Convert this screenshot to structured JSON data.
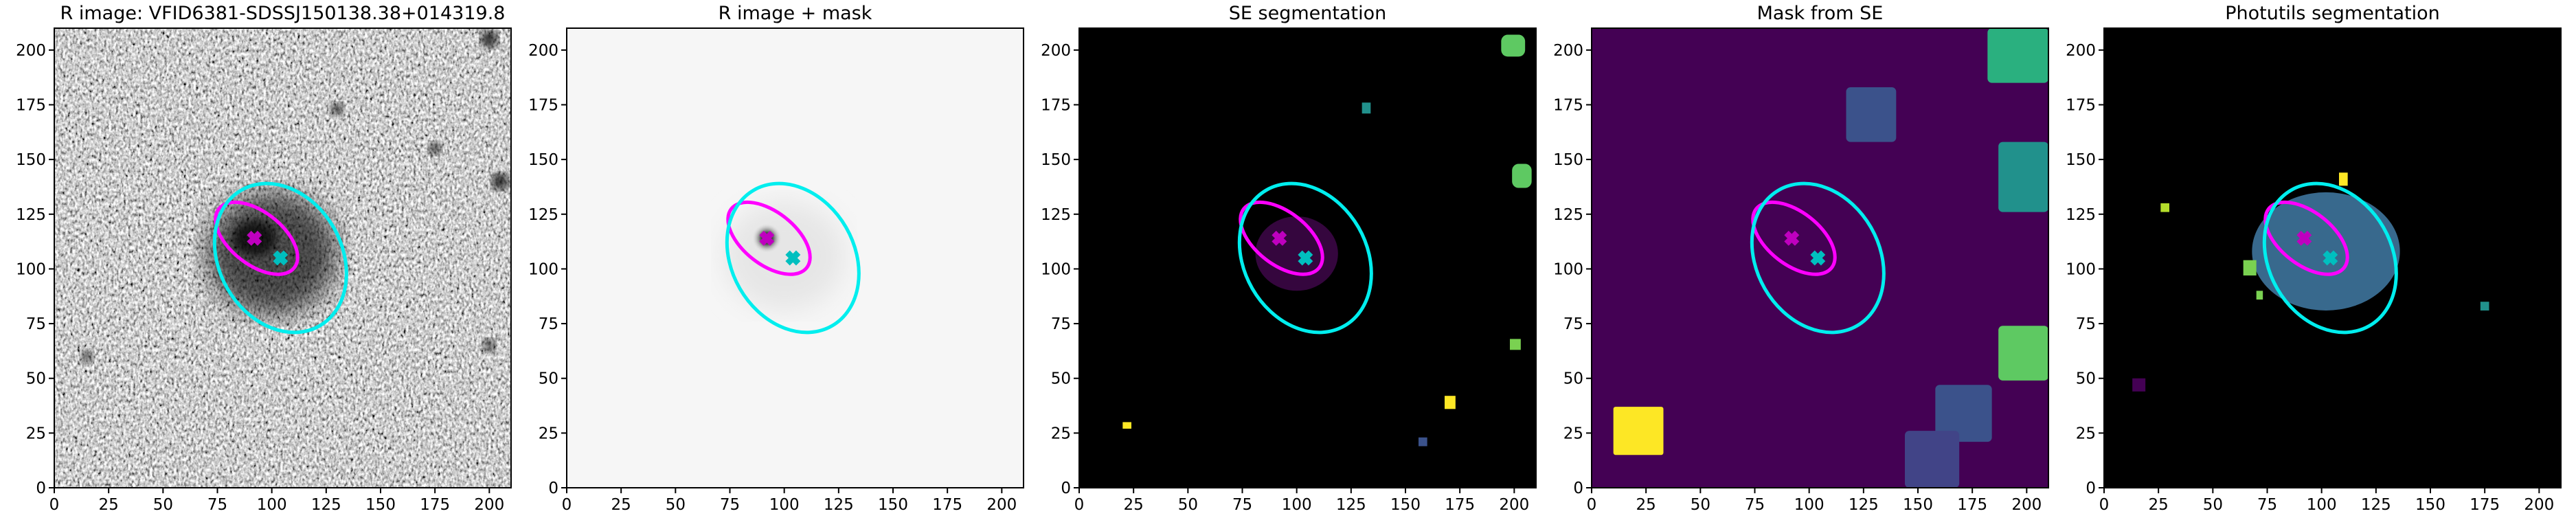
{
  "chart_data": {
    "type": "image",
    "xlim": [
      0,
      210
    ],
    "ylim": [
      0,
      210
    ],
    "xticks": [
      0,
      25,
      50,
      75,
      100,
      125,
      150,
      175,
      200
    ],
    "yticks": [
      0,
      25,
      50,
      75,
      100,
      125,
      150,
      175,
      200
    ],
    "panels": [
      {
        "title": "R image: VFID6381-SDSSJ150138.38+014319.8"
      },
      {
        "title": "R image + mask"
      },
      {
        "title": "SE segmentation"
      },
      {
        "title": "Mask from SE"
      },
      {
        "title": "Photutils segmentation"
      }
    ],
    "markers": [
      {
        "x": 92,
        "y": 114,
        "color": "#bf00bf"
      },
      {
        "x": 104,
        "y": 105,
        "color": "#00bfbf"
      }
    ],
    "ellipses": [
      {
        "x": 93,
        "y": 114,
        "rx": 22,
        "ry": 12,
        "angle": -38,
        "color": "#ff00ff"
      },
      {
        "x": 104,
        "y": 105,
        "rx": 36,
        "ry": 28,
        "angle": -60,
        "color": "#00eeee"
      }
    ]
  }
}
